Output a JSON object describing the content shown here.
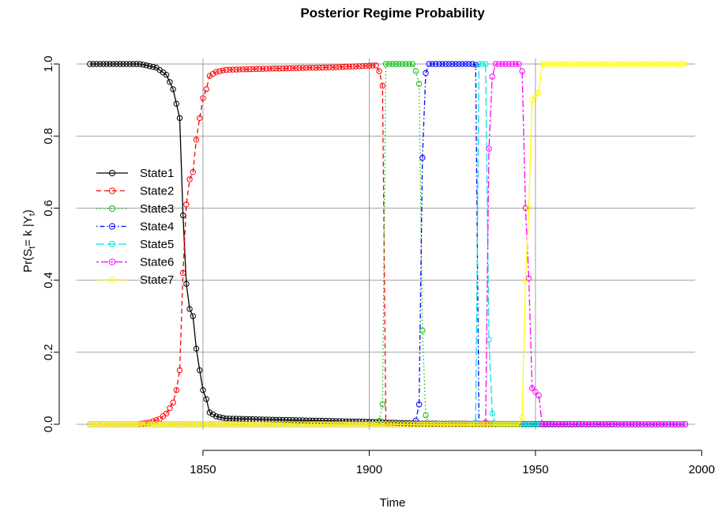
{
  "chart_data": {
    "type": "line",
    "title": "Posterior Regime Probability",
    "xlabel": "Time",
    "ylabel": "Pr(St= k |Yt)",
    "ylabel_parts": {
      "pre": "Pr(S",
      "sub1": "t",
      "mid": "= k |Y",
      "sub2": "t",
      "post": ")"
    },
    "xlim": [
      1812,
      1998
    ],
    "ylim": [
      0,
      1.0
    ],
    "x_ticks": [
      1850,
      1900,
      1950,
      2000
    ],
    "x_tick_labels": [
      "1850",
      "1900",
      "1950",
      "2000"
    ],
    "y_ticks": [
      0.0,
      0.2,
      0.4,
      0.6,
      0.8,
      1.0
    ],
    "y_tick_labels": [
      "0.0",
      "0.2",
      "0.4",
      "0.6",
      "0.8",
      "1.0"
    ],
    "grid": true,
    "legend_position": "left",
    "x_start": 1816,
    "x_end": 1995,
    "series": [
      {
        "name": "State1",
        "color": "#000000",
        "dash": "solid",
        "anchors": [
          [
            1816,
            1.0
          ],
          [
            1831,
            1.0
          ],
          [
            1836,
            0.99
          ],
          [
            1839,
            0.97
          ],
          [
            1841,
            0.93
          ],
          [
            1843,
            0.85
          ],
          [
            1844,
            0.58
          ],
          [
            1845,
            0.39
          ],
          [
            1846,
            0.32
          ],
          [
            1847,
            0.3
          ],
          [
            1848,
            0.21
          ],
          [
            1849,
            0.15
          ],
          [
            1850,
            0.095
          ],
          [
            1851,
            0.07
          ],
          [
            1852,
            0.033
          ],
          [
            1854,
            0.022
          ],
          [
            1857,
            0.016
          ],
          [
            1870,
            0.013
          ],
          [
            1880,
            0.011
          ],
          [
            1890,
            0.009
          ],
          [
            1900,
            0.007
          ],
          [
            1905,
            0.005
          ],
          [
            1915,
            0.002
          ],
          [
            1995,
            0.0
          ]
        ]
      },
      {
        "name": "State2",
        "color": "#ff0000",
        "dash": "dashed",
        "anchors": [
          [
            1816,
            0.0
          ],
          [
            1830,
            0.0
          ],
          [
            1834,
            0.005
          ],
          [
            1837,
            0.015
          ],
          [
            1839,
            0.03
          ],
          [
            1841,
            0.06
          ],
          [
            1842,
            0.095
          ],
          [
            1843,
            0.15
          ],
          [
            1844,
            0.42
          ],
          [
            1845,
            0.61
          ],
          [
            1846,
            0.68
          ],
          [
            1847,
            0.7
          ],
          [
            1848,
            0.79
          ],
          [
            1849,
            0.85
          ],
          [
            1850,
            0.905
          ],
          [
            1851,
            0.93
          ],
          [
            1852,
            0.967
          ],
          [
            1854,
            0.978
          ],
          [
            1857,
            0.984
          ],
          [
            1870,
            0.987
          ],
          [
            1880,
            0.989
          ],
          [
            1890,
            0.991
          ],
          [
            1902,
            0.996
          ],
          [
            1903,
            0.98
          ],
          [
            1904,
            0.94
          ],
          [
            1905,
            0.0
          ],
          [
            1995,
            0.0
          ]
        ]
      },
      {
        "name": "State3",
        "color": "#00c000",
        "dash": "dotted",
        "anchors": [
          [
            1816,
            0.0
          ],
          [
            1902,
            0.0
          ],
          [
            1903,
            0.01
          ],
          [
            1904,
            0.055
          ],
          [
            1905,
            1.0
          ],
          [
            1913,
            1.0
          ],
          [
            1914,
            0.98
          ],
          [
            1915,
            0.945
          ],
          [
            1916,
            0.26
          ],
          [
            1917,
            0.025
          ],
          [
            1918,
            0.0
          ],
          [
            1995,
            0.0
          ]
        ]
      },
      {
        "name": "State4",
        "color": "#0000ff",
        "dash": "dashdot",
        "anchors": [
          [
            1816,
            0.0
          ],
          [
            1913,
            0.0
          ],
          [
            1914,
            0.01
          ],
          [
            1915,
            0.055
          ],
          [
            1916,
            0.74
          ],
          [
            1917,
            0.975
          ],
          [
            1918,
            1.0
          ],
          [
            1931,
            1.0
          ],
          [
            1932,
            0.998
          ],
          [
            1933,
            0.0
          ],
          [
            1995,
            0.0
          ]
        ]
      },
      {
        "name": "State5",
        "color": "#00e5e5",
        "dash": "longdash",
        "anchors": [
          [
            1816,
            0.0
          ],
          [
            1931,
            0.0
          ],
          [
            1932,
            0.005
          ],
          [
            1933,
            1.0
          ],
          [
            1935,
            1.0
          ],
          [
            1936,
            0.235
          ],
          [
            1937,
            0.03
          ],
          [
            1938,
            0.0
          ],
          [
            1947,
            0.0
          ],
          [
            1948,
            0.0
          ],
          [
            1951,
            0.0
          ],
          [
            1952,
            0.0
          ],
          [
            1995,
            0.0
          ]
        ]
      },
      {
        "name": "State6",
        "color": "#ff00ff",
        "dash": "twodash",
        "anchors": [
          [
            1816,
            0.0
          ],
          [
            1934,
            0.0
          ],
          [
            1935,
            0.005
          ],
          [
            1936,
            0.765
          ],
          [
            1937,
            0.965
          ],
          [
            1938,
            1.0
          ],
          [
            1945,
            1.0
          ],
          [
            1946,
            0.98
          ],
          [
            1947,
            0.6
          ],
          [
            1948,
            0.405
          ],
          [
            1949,
            0.1
          ],
          [
            1950,
            0.09
          ],
          [
            1951,
            0.08
          ],
          [
            1952,
            0.0
          ],
          [
            1995,
            0.0
          ]
        ]
      },
      {
        "name": "State7",
        "color": "#ffff00",
        "dash": "solid",
        "anchors": [
          [
            1816,
            0.0
          ],
          [
            1945,
            0.0
          ],
          [
            1946,
            0.02
          ],
          [
            1947,
            0.4
          ],
          [
            1948,
            0.6
          ],
          [
            1949,
            0.9
          ],
          [
            1950,
            0.91
          ],
          [
            1951,
            0.92
          ],
          [
            1952,
            1.0
          ],
          [
            1995,
            1.0
          ]
        ]
      }
    ]
  }
}
